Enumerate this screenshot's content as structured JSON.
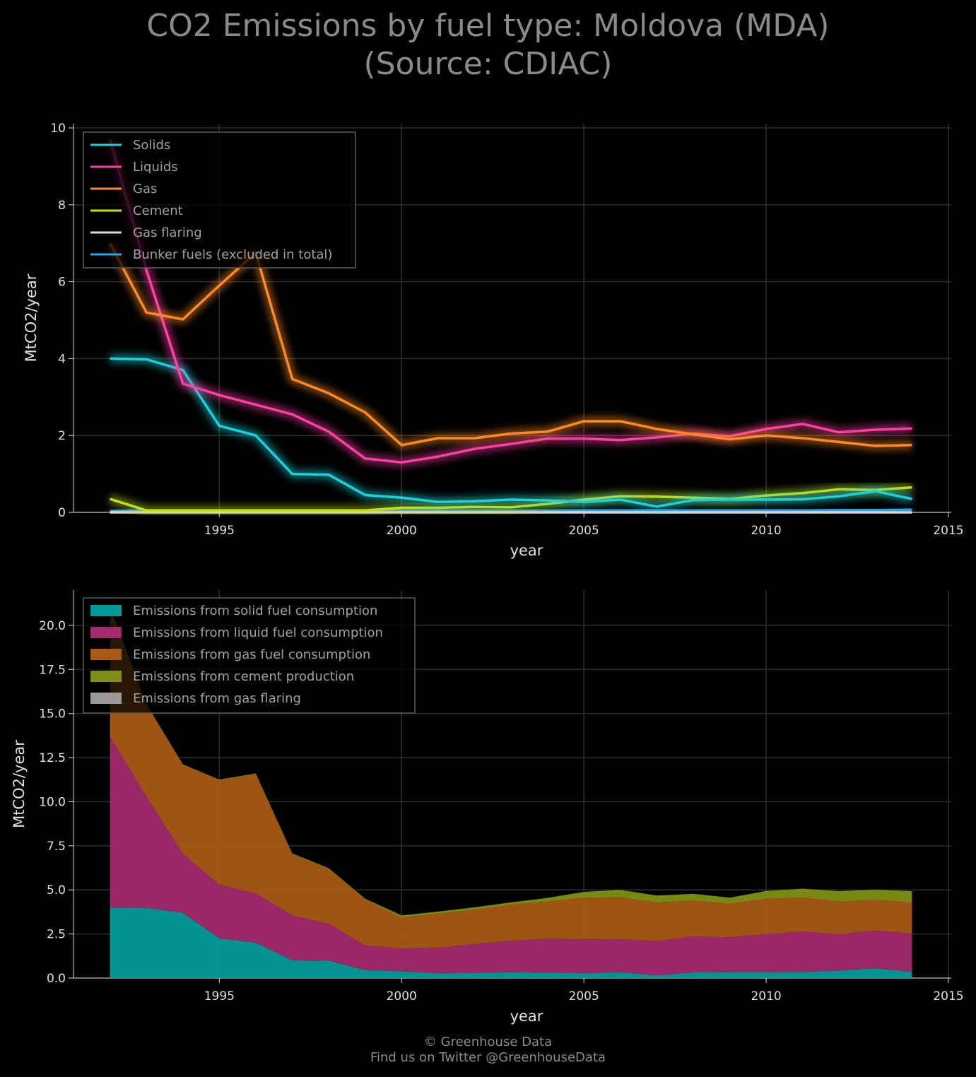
{
  "title_line1": "CO2 Emissions by fuel type: Moldova (MDA)",
  "title_line2": "(Source: CDIAC)",
  "footer_line1": "© Greenhouse Data",
  "footer_line2": "Find us on Twitter @GreenhouseData",
  "chart_data": [
    {
      "type": "line",
      "xlabel": "year",
      "ylabel": "MtCO2/year",
      "xlim": [
        1991,
        2015
      ],
      "ylim": [
        0,
        10
      ],
      "xticks": [
        "1995",
        "2000",
        "2005",
        "2010",
        "2015"
      ],
      "yticks": [
        "0",
        "2",
        "4",
        "6",
        "8",
        "10"
      ],
      "grid": true,
      "legend_position": "top-left",
      "x": [
        1992,
        1993,
        1994,
        1995,
        1996,
        1997,
        1998,
        1999,
        2000,
        2001,
        2002,
        2003,
        2004,
        2005,
        2006,
        2007,
        2008,
        2009,
        2010,
        2011,
        2012,
        2013,
        2014
      ],
      "series": [
        {
          "name": "Solids",
          "color": "#19d3dc",
          "values": [
            4.0,
            3.98,
            3.7,
            2.25,
            2.0,
            1.0,
            0.98,
            0.45,
            0.38,
            0.27,
            0.29,
            0.33,
            0.31,
            0.27,
            0.33,
            0.15,
            0.32,
            0.33,
            0.33,
            0.34,
            0.42,
            0.55,
            0.35
          ]
        },
        {
          "name": "Liquids",
          "color": "#ff3fa3",
          "values": [
            9.7,
            6.3,
            3.35,
            3.05,
            2.8,
            2.55,
            2.1,
            1.4,
            1.3,
            1.45,
            1.65,
            1.78,
            1.92,
            1.92,
            1.88,
            1.95,
            2.05,
            1.98,
            2.17,
            2.3,
            2.08,
            2.15,
            2.18
          ]
        },
        {
          "name": "Gas",
          "color": "#ff8a1f",
          "values": [
            7.0,
            5.2,
            5.02,
            5.9,
            6.75,
            3.47,
            3.1,
            2.6,
            1.75,
            1.93,
            1.93,
            2.05,
            2.1,
            2.37,
            2.37,
            2.17,
            2.03,
            1.9,
            2.0,
            1.93,
            1.83,
            1.73,
            1.75
          ]
        },
        {
          "name": "Cement",
          "color": "#c6e016",
          "values": [
            0.35,
            0.05,
            0.05,
            0.05,
            0.05,
            0.05,
            0.05,
            0.05,
            0.12,
            0.12,
            0.14,
            0.13,
            0.22,
            0.33,
            0.42,
            0.41,
            0.38,
            0.35,
            0.44,
            0.5,
            0.6,
            0.58,
            0.65
          ]
        },
        {
          "name": "Gas flaring",
          "color": "#d8d8d8",
          "values": [
            0,
            0,
            0,
            0,
            0,
            0,
            0,
            0,
            0,
            0,
            0,
            0,
            0,
            0,
            0,
            0,
            0,
            0,
            0,
            0,
            0,
            0,
            0
          ]
        },
        {
          "name": "Bunker fuels (excluded in total)",
          "color": "#2aa2e8",
          "values": [
            0.03,
            0.05,
            0.05,
            0.04,
            0.04,
            0.04,
            0.04,
            0.04,
            0.04,
            0.04,
            0.04,
            0.04,
            0.04,
            0.05,
            0.05,
            0.05,
            0.05,
            0.05,
            0.05,
            0.05,
            0.06,
            0.06,
            0.07
          ]
        }
      ]
    },
    {
      "type": "area",
      "stacked": true,
      "xlabel": "year",
      "ylabel": "MtCO2/year",
      "xlim": [
        1991,
        2015
      ],
      "ylim": [
        0,
        22
      ],
      "xticks": [
        "1995",
        "2000",
        "2005",
        "2010",
        "2015"
      ],
      "yticks": [
        "0.0",
        "2.5",
        "5.0",
        "7.5",
        "10.0",
        "12.5",
        "15.0",
        "17.5",
        "20.0"
      ],
      "grid": true,
      "legend_position": "top-left",
      "x": [
        1992,
        1993,
        1994,
        1995,
        1996,
        1997,
        1998,
        1999,
        2000,
        2001,
        2002,
        2003,
        2004,
        2005,
        2006,
        2007,
        2008,
        2009,
        2010,
        2011,
        2012,
        2013,
        2014
      ],
      "series": [
        {
          "name": "Emissions from solid fuel consumption",
          "color": "#049a9a",
          "values": [
            4.0,
            3.98,
            3.7,
            2.25,
            2.0,
            1.0,
            0.98,
            0.45,
            0.38,
            0.27,
            0.29,
            0.33,
            0.31,
            0.27,
            0.33,
            0.15,
            0.32,
            0.33,
            0.33,
            0.34,
            0.42,
            0.55,
            0.35
          ]
        },
        {
          "name": "Emissions from liquid fuel consumption",
          "color": "#a32a6b",
          "values": [
            9.7,
            6.3,
            3.35,
            3.05,
            2.8,
            2.55,
            2.1,
            1.4,
            1.3,
            1.45,
            1.65,
            1.78,
            1.92,
            1.92,
            1.88,
            1.95,
            2.05,
            1.98,
            2.17,
            2.3,
            2.08,
            2.15,
            2.18
          ]
        },
        {
          "name": "Emissions from gas fuel consumption",
          "color": "#a85914",
          "values": [
            7.0,
            5.2,
            5.02,
            5.9,
            6.75,
            3.47,
            3.1,
            2.6,
            1.75,
            1.93,
            1.93,
            2.05,
            2.1,
            2.37,
            2.37,
            2.17,
            2.03,
            1.9,
            2.0,
            1.93,
            1.83,
            1.73,
            1.75
          ]
        },
        {
          "name": "Emissions from cement production",
          "color": "#7e8f14",
          "values": [
            0.35,
            0.05,
            0.05,
            0.05,
            0.05,
            0.05,
            0.05,
            0.05,
            0.12,
            0.12,
            0.14,
            0.13,
            0.22,
            0.33,
            0.42,
            0.41,
            0.38,
            0.35,
            0.44,
            0.5,
            0.6,
            0.58,
            0.65
          ]
        },
        {
          "name": "Emissions from gas flaring",
          "color": "#9a9a9a",
          "values": [
            0,
            0,
            0,
            0,
            0,
            0,
            0,
            0,
            0,
            0,
            0,
            0,
            0,
            0,
            0,
            0,
            0,
            0,
            0,
            0,
            0,
            0,
            0
          ]
        }
      ]
    }
  ]
}
